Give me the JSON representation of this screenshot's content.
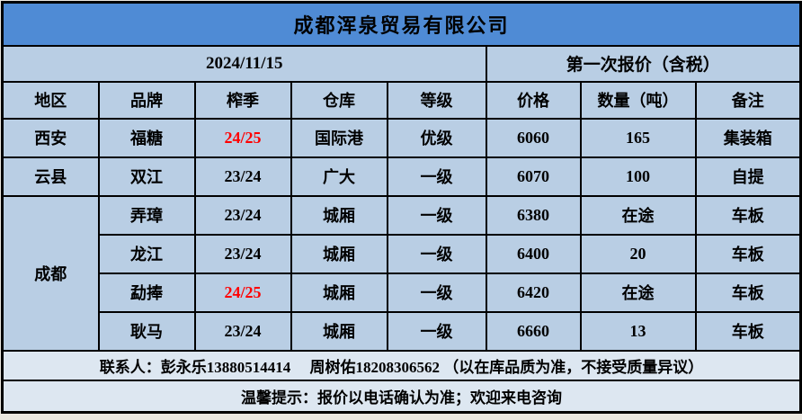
{
  "company": {
    "title": "成都浑泉贸易有限公司"
  },
  "report": {
    "date": "2024/11/15",
    "quote_label": "第一次报价（含税）"
  },
  "table": {
    "headers": [
      "地区",
      "品牌",
      "榨季",
      "仓库",
      "等级",
      "价格",
      "数量（吨）",
      "备注"
    ],
    "groups": [
      {
        "region": "西安",
        "rows": [
          {
            "brand": "福糖",
            "season": "24/25",
            "season_highlight": true,
            "warehouse": "国际港",
            "grade": "优级",
            "price": "6060",
            "quantity": "165",
            "note": "集装箱"
          }
        ]
      },
      {
        "region": "云县",
        "rows": [
          {
            "brand": "双江",
            "season": "23/24",
            "season_highlight": false,
            "warehouse": "广大",
            "grade": "一级",
            "price": "6070",
            "quantity": "100",
            "note": "自提"
          }
        ]
      },
      {
        "region": "成都",
        "rows": [
          {
            "brand": "弄璋",
            "season": "23/24",
            "season_highlight": false,
            "warehouse": "城厢",
            "grade": "一级",
            "price": "6380",
            "quantity": "在途",
            "note": "车板"
          },
          {
            "brand": "龙江",
            "season": "23/24",
            "season_highlight": false,
            "warehouse": "城厢",
            "grade": "一级",
            "price": "6400",
            "quantity": "20",
            "note": "车板"
          },
          {
            "brand": "勐捧",
            "season": "24/25",
            "season_highlight": true,
            "warehouse": "城厢",
            "grade": "一级",
            "price": "6420",
            "quantity": "在途",
            "note": "车板"
          },
          {
            "brand": "耿马",
            "season": "23/24",
            "season_highlight": false,
            "warehouse": "城厢",
            "grade": "一级",
            "price": "6660",
            "quantity": "13",
            "note": "车板"
          }
        ]
      }
    ]
  },
  "footer": {
    "contact": "联系人：彭永乐13880514414　 周树佑18208306562 （以在库品质为准，不接受质量异议）",
    "notice": "温馨提示：报价以电话确认为准；欢迎来电咨询"
  },
  "colors": {
    "title_bg": "#4f8bd5",
    "body_bg": "#b9cee4",
    "footer_bg": "#dde7f1",
    "highlight_text": "#ff0000",
    "border": "#000000"
  }
}
